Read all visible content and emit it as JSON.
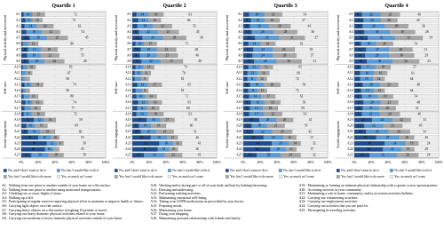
{
  "chart_data": [
    {
      "type": "stacked-barh",
      "title": "Quartile 1",
      "categories": [
        "A1",
        "A2",
        "A3",
        "A4",
        "A5",
        "A6",
        "A7",
        "A8",
        "A9",
        "A10",
        "A11",
        "A12",
        "A13",
        "A14",
        "A15",
        "A16",
        "A17",
        "A18",
        "A19",
        "A20",
        "A21",
        "A22",
        "A23",
        "A24",
        "A25"
      ],
      "groups": [
        {
          "label": "Physical activity and movement",
          "from": 0,
          "to": 8
        },
        {
          "label": "Self-care",
          "from": 9,
          "to": 16
        },
        {
          "label": "Social engagement",
          "from": 17,
          "to": 24
        }
      ],
      "series": [
        {
          "name": "No, and I don't want to do it",
          "color": "#1f4e8c",
          "values": [
            3,
            5,
            4,
            6,
            10,
            2,
            8,
            7,
            9,
            2,
            1,
            1,
            4,
            2,
            3,
            5,
            4,
            3,
            15,
            6,
            8,
            20,
            30,
            28,
            12
          ]
        },
        {
          "name": "No, but I would like to do it",
          "color": "#5b9bd5",
          "values": [
            10,
            8,
            14,
            18,
            20,
            6,
            15,
            16,
            18,
            5,
            4,
            3,
            8,
            3,
            6,
            8,
            7,
            9,
            12,
            10,
            14,
            15,
            12,
            10,
            20
          ]
        },
        {
          "name": "Yes, but I would like to do more",
          "color": "#a6a6a6",
          "values": [
            15,
            12,
            20,
            22,
            25,
            12,
            20,
            22,
            24,
            10,
            8,
            6,
            14,
            5,
            11,
            13,
            12,
            16,
            14,
            15,
            18,
            10,
            8,
            7,
            18
          ]
        },
        {
          "name": "Yes, as much as I want",
          "color": "#ececec",
          "values": [
            72,
            75,
            62,
            54,
            45,
            80,
            57,
            55,
            49,
            83,
            87,
            90,
            74,
            90,
            80,
            74,
            77,
            72,
            59,
            69,
            60,
            55,
            50,
            55,
            50
          ]
        }
      ],
      "xlim": [
        0,
        100
      ],
      "xticks": [
        {
          "value": 0,
          "label": "0%"
        },
        {
          "value": 20,
          "label": "20%"
        },
        {
          "value": 40,
          "label": "40%"
        },
        {
          "value": 60,
          "label": "60%"
        },
        {
          "value": 80,
          "label": "80%"
        },
        {
          "value": 100,
          "label": "100%"
        }
      ],
      "grid": true
    },
    {
      "type": "stacked-barh",
      "title": "Quartile 2",
      "categories": [
        "A1",
        "A2",
        "A3",
        "A4",
        "A5",
        "A6",
        "A7",
        "A8",
        "A9",
        "A10",
        "A11",
        "A12",
        "A13",
        "A14",
        "A15",
        "A16",
        "A17",
        "A18",
        "A19",
        "A20",
        "A21",
        "A22",
        "A23",
        "A24",
        "A25"
      ],
      "groups": [
        {
          "label": "Physical activity and movement",
          "from": 0,
          "to": 8
        },
        {
          "label": "Self-care",
          "from": 9,
          "to": 16
        },
        {
          "label": "Social engagement",
          "from": 17,
          "to": 24
        }
      ],
      "series": [
        {
          "name": "No, and I don't want to do it",
          "color": "#1f4e8c",
          "values": [
            5,
            7,
            6,
            8,
            12,
            4,
            10,
            9,
            11,
            4,
            3,
            3,
            6,
            4,
            5,
            7,
            6,
            5,
            17,
            8,
            10,
            22,
            32,
            30,
            14
          ]
        },
        {
          "name": "No, but I would like to do it",
          "color": "#5b9bd5",
          "values": [
            14,
            12,
            18,
            22,
            24,
            10,
            19,
            20,
            22,
            9,
            8,
            7,
            12,
            7,
            10,
            12,
            11,
            13,
            16,
            14,
            18,
            19,
            16,
            14,
            24
          ]
        },
        {
          "name": "Yes, but I would like to do more",
          "color": "#a6a6a6",
          "values": [
            18,
            15,
            23,
            25,
            28,
            15,
            23,
            25,
            27,
            13,
            11,
            9,
            17,
            8,
            14,
            16,
            15,
            19,
            17,
            18,
            21,
            13,
            11,
            10,
            21
          ]
        },
        {
          "name": "Yes, as much as I want",
          "color": "#ececec",
          "values": [
            63,
            66,
            53,
            45,
            36,
            71,
            48,
            46,
            40,
            74,
            78,
            81,
            65,
            81,
            71,
            65,
            68,
            63,
            50,
            60,
            51,
            46,
            41,
            46,
            41
          ]
        }
      ],
      "xlim": [
        0,
        100
      ],
      "xticks": [
        {
          "value": 0,
          "label": "0%"
        },
        {
          "value": 20,
          "label": "20%"
        },
        {
          "value": 40,
          "label": "40%"
        },
        {
          "value": 60,
          "label": "60%"
        },
        {
          "value": 80,
          "label": "80%"
        },
        {
          "value": 100,
          "label": "100%"
        }
      ],
      "grid": true
    },
    {
      "type": "stacked-barh",
      "title": "Quartile 3",
      "categories": [
        "A1",
        "A2",
        "A3",
        "A4",
        "A5",
        "A6",
        "A7",
        "A8",
        "A9",
        "A10",
        "A11",
        "A12",
        "A13",
        "A14",
        "A15",
        "A16",
        "A17",
        "A18",
        "A19",
        "A20",
        "A21",
        "A22",
        "A23",
        "A24",
        "A25"
      ],
      "groups": [
        {
          "label": "Physical activity and movement",
          "from": 0,
          "to": 8
        },
        {
          "label": "Self-care",
          "from": 9,
          "to": 16
        },
        {
          "label": "Social engagement",
          "from": 17,
          "to": 24
        }
      ],
      "series": [
        {
          "name": "No, and I don't want to do it",
          "color": "#1f4e8c",
          "values": [
            7,
            9,
            8,
            10,
            14,
            6,
            12,
            11,
            13,
            6,
            5,
            5,
            8,
            6,
            7,
            9,
            8,
            7,
            19,
            10,
            12,
            24,
            34,
            32,
            16
          ]
        },
        {
          "name": "No, but I would like to do it",
          "color": "#5b9bd5",
          "values": [
            18,
            16,
            22,
            26,
            28,
            14,
            23,
            24,
            26,
            13,
            12,
            11,
            16,
            11,
            14,
            16,
            15,
            17,
            20,
            18,
            22,
            23,
            20,
            18,
            28
          ]
        },
        {
          "name": "Yes, but I would like to do more",
          "color": "#a6a6a6",
          "values": [
            21,
            18,
            26,
            28,
            31,
            18,
            26,
            28,
            30,
            16,
            14,
            12,
            20,
            11,
            17,
            19,
            18,
            22,
            20,
            21,
            24,
            16,
            14,
            13,
            24
          ]
        },
        {
          "name": "Yes, as much as I want",
          "color": "#ececec",
          "values": [
            54,
            57,
            44,
            36,
            27,
            62,
            39,
            37,
            31,
            65,
            69,
            72,
            56,
            72,
            62,
            56,
            59,
            54,
            41,
            51,
            42,
            37,
            32,
            37,
            32
          ]
        }
      ],
      "xlim": [
        0,
        100
      ],
      "xticks": [
        {
          "value": 0,
          "label": "0%"
        },
        {
          "value": 20,
          "label": "20%"
        },
        {
          "value": 40,
          "label": "40%"
        },
        {
          "value": 60,
          "label": "60%"
        },
        {
          "value": 80,
          "label": "80%"
        },
        {
          "value": 100,
          "label": "100%"
        }
      ],
      "grid": true
    },
    {
      "type": "stacked-barh",
      "title": "Quartile 4",
      "categories": [
        "A1",
        "A2",
        "A3",
        "A4",
        "A5",
        "A6",
        "A7",
        "A8",
        "A9",
        "A10",
        "A11",
        "A12",
        "A13",
        "A14",
        "A15",
        "A16",
        "A17",
        "A18",
        "A19",
        "A20",
        "A21",
        "A22",
        "A23",
        "A24",
        "A25"
      ],
      "groups": [
        {
          "label": "Physical activity and movement",
          "from": 0,
          "to": 8
        },
        {
          "label": "Self-care",
          "from": 9,
          "to": 16
        },
        {
          "label": "Social engagement",
          "from": 17,
          "to": 24
        }
      ],
      "series": [
        {
          "name": "No, and I don't want to do it",
          "color": "#1f4e8c",
          "values": [
            9,
            11,
            10,
            12,
            16,
            8,
            14,
            13,
            15,
            8,
            7,
            7,
            10,
            8,
            9,
            11,
            10,
            9,
            21,
            12,
            14,
            26,
            36,
            34,
            18
          ]
        },
        {
          "name": "No, but I would like to do it",
          "color": "#5b9bd5",
          "values": [
            22,
            20,
            26,
            30,
            32,
            18,
            27,
            28,
            30,
            17,
            16,
            15,
            20,
            15,
            18,
            20,
            19,
            21,
            24,
            22,
            26,
            27,
            24,
            22,
            32
          ]
        },
        {
          "name": "Yes, but I would like to do more",
          "color": "#a6a6a6",
          "values": [
            23,
            20,
            28,
            30,
            33,
            20,
            28,
            30,
            32,
            18,
            16,
            14,
            22,
            13,
            19,
            21,
            20,
            24,
            22,
            23,
            26,
            18,
            16,
            15,
            26
          ]
        },
        {
          "name": "Yes, as much as I want",
          "color": "#ececec",
          "values": [
            46,
            49,
            36,
            28,
            19,
            54,
            31,
            29,
            23,
            57,
            61,
            64,
            48,
            64,
            54,
            48,
            51,
            46,
            33,
            43,
            34,
            29,
            24,
            29,
            24
          ]
        }
      ],
      "xlim": [
        0,
        100
      ],
      "xticks": [
        {
          "value": 0,
          "label": "0%"
        },
        {
          "value": 20,
          "label": "20%"
        },
        {
          "value": 40,
          "label": "40%"
        },
        {
          "value": 60,
          "label": "60%"
        },
        {
          "value": 80,
          "label": "80%"
        },
        {
          "value": 100,
          "label": "100%"
        }
      ],
      "grid": true
    }
  ],
  "activity_notes": [
    {
      "code": "A1:",
      "text": "Walking from one place to another outside of your home on a flat surface."
    },
    {
      "code": "A2:",
      "text": "Walking from one place to another using motorized transportation."
    },
    {
      "code": "A3:",
      "text": "Climbing two or more flights of stairs."
    },
    {
      "code": "A4:",
      "text": "Walking up a hill."
    },
    {
      "code": "A5:",
      "text": "Participating in regular exercise requiring physical effort to maintain or improve health or fitness."
    },
    {
      "code": "A6:",
      "text": "Carrying light objects on a flat surface."
    },
    {
      "code": "A7:",
      "text": "Carrying heavy objects on a flat surface (weighing 10 pounds or more)."
    },
    {
      "code": "A8:",
      "text": "Carrying-out heavy domestic physical activities related to your home."
    },
    {
      "code": "A9:",
      "text": "Carrying-out moderate to heavy intensity physical activities outside of your home."
    },
    {
      "code": "A10:",
      "text": "Washing and/or drying part or all of your body and hair by bathing/showering."
    },
    {
      "code": "A11:",
      "text": "Dressing and undressing."
    },
    {
      "code": "A12:",
      "text": "Performing toileting activities."
    },
    {
      "code": "A13:",
      "text": "Maintaining emotional well-being."
    },
    {
      "code": "A14:",
      "text": "Taking your COPD medications as prescribed by your doctor."
    },
    {
      "code": "A15:",
      "text": "Preparing meals."
    },
    {
      "code": "A16:",
      "text": "Maintaining your home."
    },
    {
      "code": "A17:",
      "text": "Doing your shopping."
    },
    {
      "code": "A18:",
      "text": "Maintaining personal relationships with friends and family."
    },
    {
      "code": "A19:",
      "text": "Maintaining or forming an intimate physical relationship with a spouse or new spouse/partner."
    },
    {
      "code": "A20:",
      "text": "Accessing services in your community."
    },
    {
      "code": "A21:",
      "text": "Maintaining a role in home, community, and/or recreation activities/hobbies."
    },
    {
      "code": "A22:",
      "text": "Carrying-out volunteering activities."
    },
    {
      "code": "A23:",
      "text": "Carrying-out employment activities."
    },
    {
      "code": "A24:",
      "text": "Carrying-out activities that you are paid for."
    },
    {
      "code": "A25:",
      "text": "Participating in traveling activities."
    }
  ]
}
